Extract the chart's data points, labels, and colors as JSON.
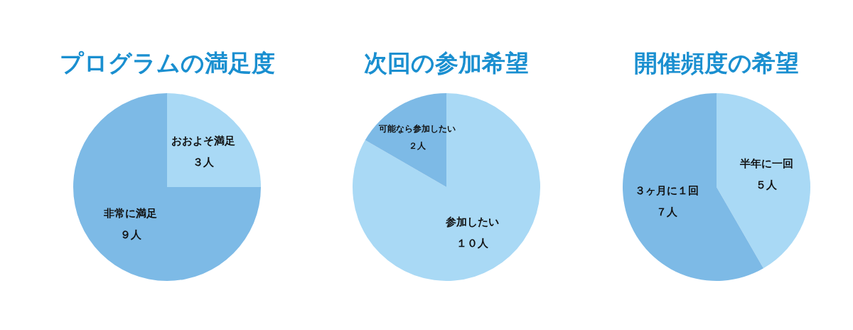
{
  "chart_data": [
    {
      "type": "pie",
      "title": "プログラムの満足度",
      "categories": [
        "おおよそ満足",
        "非常に満足"
      ],
      "values": [
        3,
        9
      ],
      "value_labels": [
        "３人",
        "９人"
      ],
      "colors": [
        "#a9d9f5",
        "#7dbae6"
      ]
    },
    {
      "type": "pie",
      "title": "次回の参加希望",
      "categories": [
        "参加したい",
        "可能なら参加したい"
      ],
      "values": [
        10,
        2
      ],
      "value_labels": [
        "１０人",
        "２人"
      ],
      "colors": [
        "#a9d9f5",
        "#7dbae6"
      ]
    },
    {
      "type": "pie",
      "title": "開催頻度の希望",
      "categories": [
        "半年に一回",
        "３ヶ月に１回"
      ],
      "values": [
        5,
        7
      ],
      "value_labels": [
        "５人",
        "７人"
      ],
      "colors": [
        "#a9d9f5",
        "#7dbae6"
      ]
    }
  ]
}
